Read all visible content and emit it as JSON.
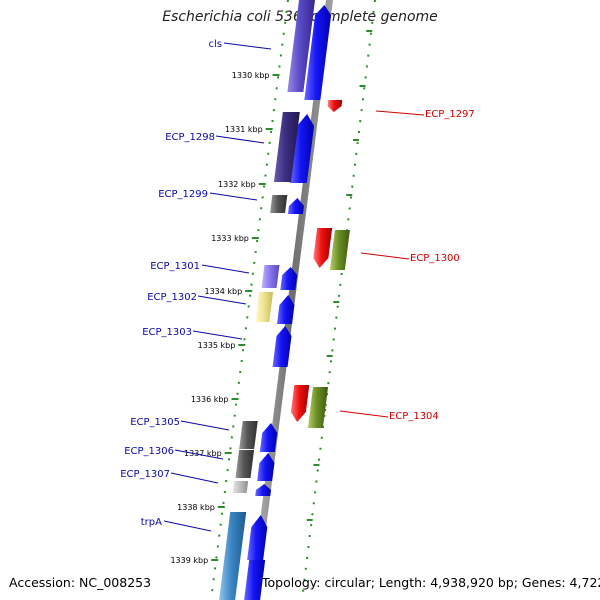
{
  "title": "Escherichia coli 536, complete genome",
  "footer": {
    "accession": "Accession: NC_008253",
    "summary": "Topology: circular; Length: 4,938,920 bp; Genes: 4,722"
  },
  "colors": {
    "forward_label": "#0a0aa8",
    "reverse_label": "#d00000",
    "backbone": "#7a7a7a",
    "scale_track": "#2e8b2e",
    "forward_arrow": "#1010ee",
    "reverse_arrow": "#ee1010",
    "reverse_olive": "#6b8e23"
  },
  "ticks": [
    {
      "label": "1330 kbp"
    },
    {
      "label": "1331 kbp"
    },
    {
      "label": "1332 kbp"
    },
    {
      "label": "1333 kbp"
    },
    {
      "label": "1334 kbp"
    },
    {
      "label": "1335 kbp"
    },
    {
      "label": "1336 kbp"
    },
    {
      "label": "1337 kbp"
    },
    {
      "label": "1338 kbp"
    },
    {
      "label": "1339 kbp"
    }
  ],
  "forward_genes": [
    {
      "label": "cls"
    },
    {
      "label": "ECP_1298"
    },
    {
      "label": "ECP_1299"
    },
    {
      "label": "ECP_1301"
    },
    {
      "label": "ECP_1302"
    },
    {
      "label": "ECP_1303"
    },
    {
      "label": "ECP_1305"
    },
    {
      "label": "ECP_1306"
    },
    {
      "label": "ECP_1307"
    },
    {
      "label": "trpA"
    }
  ],
  "reverse_genes": [
    {
      "label": "ECP_1297"
    },
    {
      "label": "ECP_1300"
    },
    {
      "label": "ECP_1304"
    }
  ]
}
